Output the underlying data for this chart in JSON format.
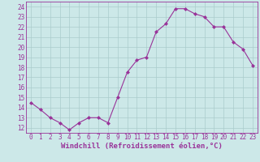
{
  "x": [
    0,
    1,
    2,
    3,
    4,
    5,
    6,
    7,
    8,
    9,
    10,
    11,
    12,
    13,
    14,
    15,
    16,
    17,
    18,
    19,
    20,
    21,
    22,
    23
  ],
  "y": [
    14.5,
    13.8,
    13.0,
    12.5,
    11.8,
    12.5,
    13.0,
    13.0,
    12.5,
    15.0,
    17.5,
    18.7,
    19.0,
    21.5,
    22.3,
    23.8,
    23.8,
    23.3,
    23.0,
    22.0,
    22.0,
    20.5,
    19.8,
    18.2
  ],
  "line_color": "#993399",
  "marker": "D",
  "marker_size": 2.0,
  "bg_color": "#cce8e8",
  "grid_color": "#aacccc",
  "xlabel": "Windchill (Refroidissement éolien,°C)",
  "ylabel_ticks": [
    12,
    13,
    14,
    15,
    16,
    17,
    18,
    19,
    20,
    21,
    22,
    23,
    24
  ],
  "xtick_labels": [
    "0",
    "1",
    "2",
    "3",
    "4",
    "5",
    "6",
    "7",
    "8",
    "9",
    "10",
    "11",
    "12",
    "13",
    "14",
    "15",
    "16",
    "17",
    "18",
    "19",
    "20",
    "21",
    "22",
    "23"
  ],
  "ylim": [
    11.5,
    24.5
  ],
  "xlim": [
    -0.5,
    23.5
  ],
  "tick_fontsize": 5.5,
  "xlabel_fontsize": 6.5,
  "linewidth": 0.8
}
